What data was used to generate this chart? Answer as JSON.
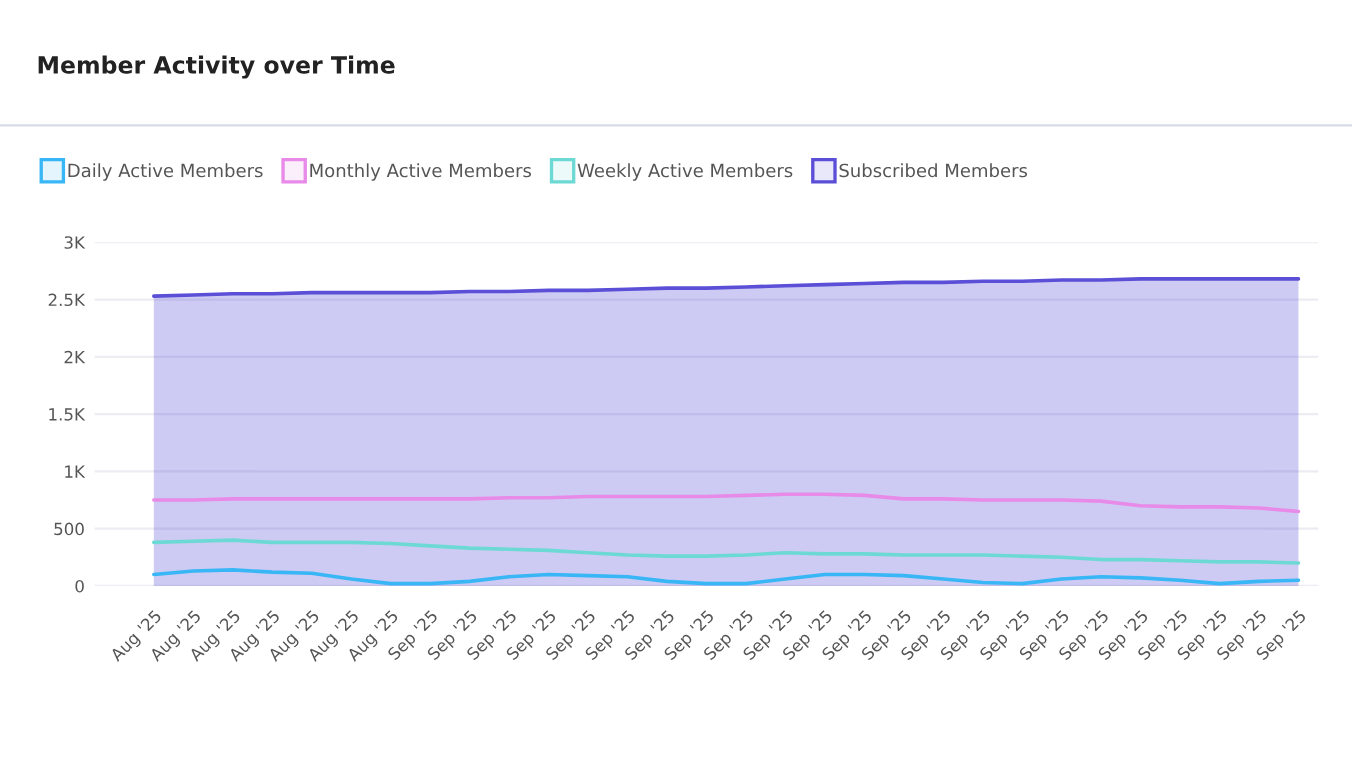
{
  "chart_data": {
    "type": "line",
    "title": "Member Activity over Time",
    "categories": [
      "Aug '25",
      "Aug '25",
      "Aug '25",
      "Aug '25",
      "Aug '25",
      "Aug '25",
      "Aug '25",
      "Sep '25",
      "Sep '25",
      "Sep '25",
      "Sep '25",
      "Sep '25",
      "Sep '25",
      "Sep '25",
      "Sep '25",
      "Sep '25",
      "Sep '25",
      "Sep '25",
      "Sep '25",
      "Sep '25",
      "Sep '25",
      "Sep '25",
      "Sep '25",
      "Sep '25",
      "Sep '25",
      "Sep '25",
      "Sep '25",
      "Sep '25",
      "Sep '25",
      "Sep '25"
    ],
    "series": [
      {
        "name": "Daily Active Members",
        "color": "#38b6f5",
        "values": [
          100,
          130,
          140,
          120,
          110,
          60,
          20,
          20,
          40,
          80,
          100,
          90,
          80,
          40,
          20,
          20,
          60,
          100,
          100,
          90,
          60,
          30,
          20,
          60,
          80,
          70,
          50,
          20,
          40,
          50
        ]
      },
      {
        "name": "Monthly Active Members",
        "color": "#e88ae8",
        "values": [
          750,
          750,
          760,
          760,
          760,
          760,
          760,
          760,
          760,
          770,
          770,
          780,
          780,
          780,
          780,
          790,
          800,
          800,
          790,
          760,
          760,
          750,
          750,
          750,
          740,
          700,
          690,
          690,
          680,
          650
        ]
      },
      {
        "name": "Weekly Active Members",
        "color": "#6dd9d4",
        "values": [
          380,
          390,
          400,
          380,
          380,
          380,
          370,
          350,
          330,
          320,
          310,
          290,
          270,
          260,
          260,
          270,
          290,
          280,
          280,
          270,
          270,
          270,
          260,
          250,
          230,
          230,
          220,
          210,
          210,
          200
        ]
      },
      {
        "name": "Subscribed Members",
        "color": "#5a4fd6",
        "type": "area",
        "values": [
          2530,
          2540,
          2550,
          2550,
          2560,
          2560,
          2560,
          2560,
          2570,
          2570,
          2580,
          2580,
          2590,
          2600,
          2600,
          2610,
          2620,
          2630,
          2640,
          2650,
          2650,
          2660,
          2660,
          2670,
          2670,
          2680,
          2680,
          2680,
          2680,
          2680
        ]
      }
    ],
    "ylim": [
      0,
      3000
    ],
    "yticks": [
      {
        "value": 0,
        "label": "0"
      },
      {
        "value": 500,
        "label": "500"
      },
      {
        "value": 1000,
        "label": "1K"
      },
      {
        "value": 1500,
        "label": "1.5K"
      },
      {
        "value": 2000,
        "label": "2K"
      },
      {
        "value": 2500,
        "label": "2.5K"
      },
      {
        "value": 3000,
        "label": "3K"
      }
    ],
    "grid": "y",
    "legend": "top left",
    "marker": "none",
    "line_style": "solid"
  }
}
